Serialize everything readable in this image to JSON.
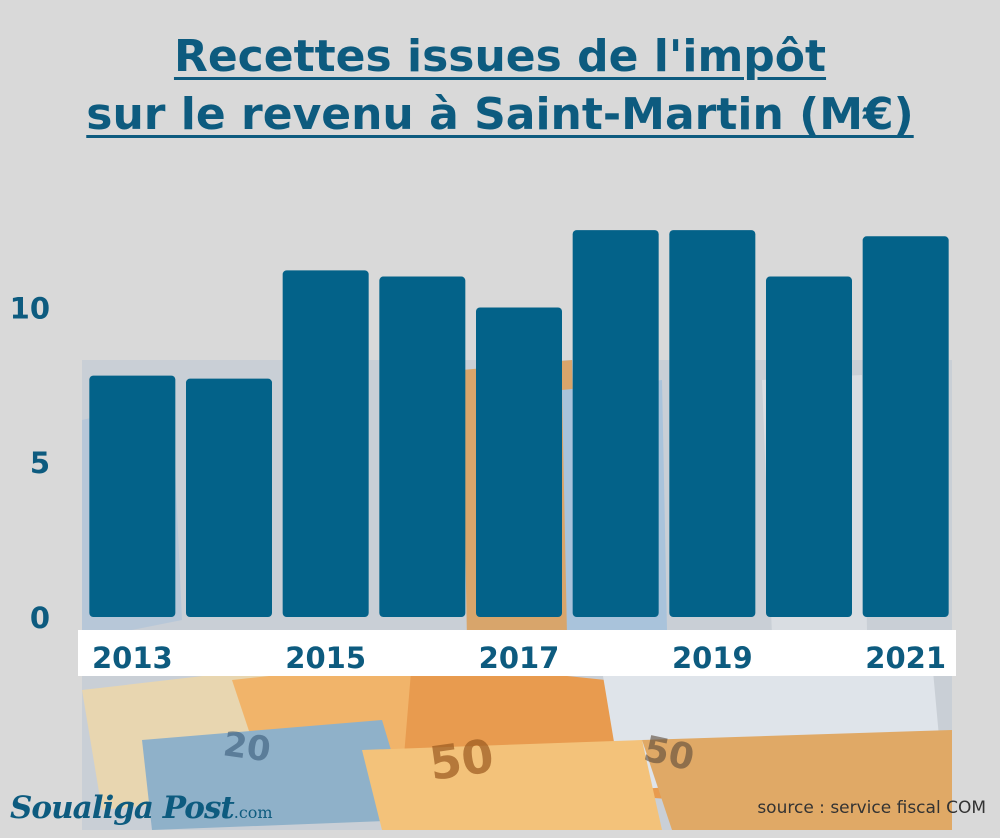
{
  "header": {
    "title_line1": "Recettes issues de l'impôt",
    "title_line2": "sur le revenu à Saint-Martin (M€)"
  },
  "footer": {
    "brand": "Soualiga Post",
    "brand_domain": ".com",
    "source": "source : service fiscal COM"
  },
  "colors": {
    "bar": "#036289",
    "title": "#0d5b7f",
    "background": "#d9d9d9"
  },
  "chart_data": {
    "type": "bar",
    "categories": [
      "2013",
      "2014",
      "2015",
      "2016",
      "2017",
      "2018",
      "2019",
      "2020",
      "2021"
    ],
    "x_tick_labels": [
      "2013",
      "",
      "2015",
      "",
      "2017",
      "",
      "2019",
      "",
      "2021"
    ],
    "values": [
      7.8,
      7.7,
      11.2,
      11.0,
      10.0,
      12.5,
      12.5,
      11.0,
      12.3
    ],
    "ylim": [
      0,
      12.6
    ],
    "yticks": [
      "0",
      "5",
      "10"
    ],
    "title": "Recettes issues de l'impôt sur le revenu à Saint-Martin (M€)",
    "xlabel": "",
    "ylabel": "",
    "grid": false,
    "legend": "none"
  }
}
